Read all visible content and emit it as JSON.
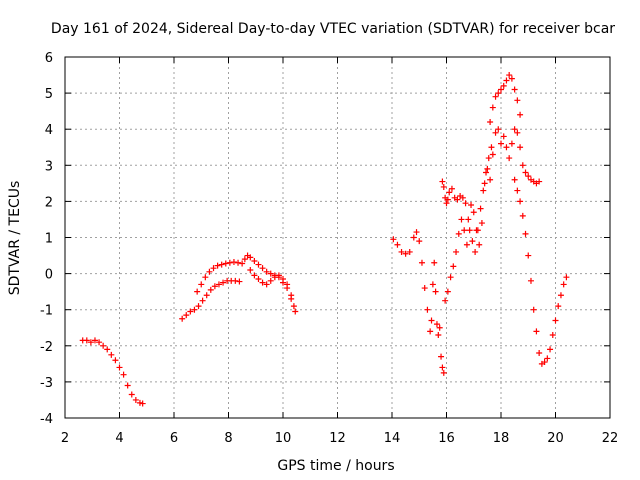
{
  "chart_data": {
    "type": "scatter",
    "title": "Day 161 of 2024, Sidereal Day-to-day VTEC variation (SDTVAR) for receiver bcar",
    "xlabel": "GPS time / hours",
    "ylabel": "SDTVAR / TECUs",
    "xlim": [
      2,
      22
    ],
    "ylim": [
      -4,
      6
    ],
    "xticks": [
      2,
      4,
      6,
      8,
      10,
      12,
      14,
      16,
      18,
      20,
      22
    ],
    "yticks": [
      -4,
      -3,
      -2,
      -1,
      0,
      1,
      2,
      3,
      4,
      5,
      6
    ],
    "grid": true,
    "marker": "+",
    "color": "#ff0000",
    "series": [
      {
        "name": "bcar",
        "points": [
          [
            2.65,
            -1.85
          ],
          [
            2.8,
            -1.85
          ],
          [
            2.95,
            -1.9
          ],
          [
            3.1,
            -1.85
          ],
          [
            3.25,
            -1.9
          ],
          [
            3.4,
            -2.0
          ],
          [
            3.55,
            -2.1
          ],
          [
            3.7,
            -2.25
          ],
          [
            3.85,
            -2.4
          ],
          [
            4.0,
            -2.6
          ],
          [
            4.15,
            -2.8
          ],
          [
            4.3,
            -3.1
          ],
          [
            4.45,
            -3.35
          ],
          [
            4.6,
            -3.5
          ],
          [
            4.75,
            -3.58
          ],
          [
            4.85,
            -3.6
          ],
          [
            6.3,
            -1.25
          ],
          [
            6.45,
            -1.15
          ],
          [
            6.6,
            -1.05
          ],
          [
            6.75,
            -1.0
          ],
          [
            6.9,
            -0.9
          ],
          [
            7.05,
            -0.75
          ],
          [
            7.2,
            -0.6
          ],
          [
            7.35,
            -0.45
          ],
          [
            7.5,
            -0.35
          ],
          [
            7.65,
            -0.3
          ],
          [
            7.8,
            -0.25
          ],
          [
            7.95,
            -0.2
          ],
          [
            8.1,
            -0.2
          ],
          [
            8.25,
            -0.2
          ],
          [
            8.4,
            -0.22
          ],
          [
            6.85,
            -0.5
          ],
          [
            7.0,
            -0.3
          ],
          [
            7.15,
            -0.1
          ],
          [
            7.3,
            0.05
          ],
          [
            7.45,
            0.15
          ],
          [
            7.6,
            0.22
          ],
          [
            7.75,
            0.25
          ],
          [
            7.9,
            0.28
          ],
          [
            8.05,
            0.3
          ],
          [
            8.2,
            0.32
          ],
          [
            8.35,
            0.3
          ],
          [
            8.5,
            0.28
          ],
          [
            8.6,
            0.4
          ],
          [
            8.7,
            0.5
          ],
          [
            8.8,
            0.45
          ],
          [
            8.95,
            0.35
          ],
          [
            9.1,
            0.25
          ],
          [
            9.25,
            0.15
          ],
          [
            9.4,
            0.05
          ],
          [
            9.55,
            0.0
          ],
          [
            9.7,
            -0.05
          ],
          [
            9.85,
            -0.1
          ],
          [
            10.0,
            -0.25
          ],
          [
            10.15,
            -0.4
          ],
          [
            10.3,
            -0.7
          ],
          [
            10.45,
            -1.05
          ],
          [
            8.8,
            0.1
          ],
          [
            8.95,
            -0.05
          ],
          [
            9.1,
            -0.15
          ],
          [
            9.25,
            -0.25
          ],
          [
            9.4,
            -0.3
          ],
          [
            9.55,
            -0.2
          ],
          [
            9.7,
            -0.1
          ],
          [
            9.85,
            -0.05
          ],
          [
            10.0,
            -0.15
          ],
          [
            10.15,
            -0.3
          ],
          [
            10.3,
            -0.6
          ],
          [
            10.4,
            -0.9
          ],
          [
            14.05,
            0.95
          ],
          [
            14.2,
            0.8
          ],
          [
            14.35,
            0.6
          ],
          [
            14.5,
            0.55
          ],
          [
            14.65,
            0.6
          ],
          [
            14.8,
            1.0
          ],
          [
            14.9,
            1.15
          ],
          [
            15.0,
            0.9
          ],
          [
            15.1,
            0.3
          ],
          [
            15.2,
            -0.4
          ],
          [
            15.3,
            -1.0
          ],
          [
            15.4,
            -1.6
          ],
          [
            15.45,
            -1.3
          ],
          [
            15.5,
            -0.3
          ],
          [
            15.55,
            0.3
          ],
          [
            15.6,
            -0.5
          ],
          [
            15.65,
            -1.4
          ],
          [
            15.7,
            -1.7
          ],
          [
            15.75,
            -1.5
          ],
          [
            15.8,
            -2.3
          ],
          [
            15.85,
            -2.6
          ],
          [
            15.9,
            -2.75
          ],
          [
            15.85,
            2.55
          ],
          [
            15.9,
            2.4
          ],
          [
            15.95,
            2.1
          ],
          [
            16.0,
            1.95
          ],
          [
            16.05,
            2.05
          ],
          [
            16.1,
            2.25
          ],
          [
            16.2,
            2.35
          ],
          [
            16.3,
            2.1
          ],
          [
            16.4,
            2.05
          ],
          [
            16.5,
            2.15
          ],
          [
            16.6,
            2.1
          ],
          [
            16.7,
            1.95
          ],
          [
            15.95,
            -0.75
          ],
          [
            16.05,
            -0.5
          ],
          [
            16.15,
            -0.1
          ],
          [
            16.25,
            0.2
          ],
          [
            16.35,
            0.6
          ],
          [
            16.45,
            1.1
          ],
          [
            16.55,
            1.5
          ],
          [
            16.65,
            1.2
          ],
          [
            16.75,
            0.8
          ],
          [
            16.85,
            1.2
          ],
          [
            16.95,
            0.9
          ],
          [
            17.05,
            0.6
          ],
          [
            17.15,
            1.2
          ],
          [
            17.25,
            1.8
          ],
          [
            17.35,
            2.3
          ],
          [
            17.45,
            2.8
          ],
          [
            17.55,
            3.2
          ],
          [
            17.65,
            3.5
          ],
          [
            16.8,
            1.5
          ],
          [
            16.9,
            1.9
          ],
          [
            17.0,
            1.7
          ],
          [
            17.1,
            1.2
          ],
          [
            17.2,
            0.8
          ],
          [
            17.3,
            1.4
          ],
          [
            17.4,
            2.5
          ],
          [
            17.5,
            2.9
          ],
          [
            17.6,
            2.6
          ],
          [
            17.7,
            3.3
          ],
          [
            17.8,
            3.9
          ],
          [
            17.9,
            4.0
          ],
          [
            17.6,
            4.2
          ],
          [
            17.7,
            4.6
          ],
          [
            17.8,
            4.9
          ],
          [
            17.9,
            5.0
          ],
          [
            18.0,
            5.1
          ],
          [
            18.1,
            5.2
          ],
          [
            18.2,
            5.35
          ],
          [
            18.3,
            5.5
          ],
          [
            18.4,
            5.4
          ],
          [
            18.5,
            5.1
          ],
          [
            18.6,
            4.8
          ],
          [
            18.7,
            4.4
          ],
          [
            18.0,
            3.6
          ],
          [
            18.1,
            3.8
          ],
          [
            18.2,
            3.5
          ],
          [
            18.3,
            3.2
          ],
          [
            18.4,
            3.6
          ],
          [
            18.5,
            4.0
          ],
          [
            18.6,
            3.9
          ],
          [
            18.7,
            3.5
          ],
          [
            18.8,
            3.0
          ],
          [
            18.9,
            2.8
          ],
          [
            19.0,
            2.7
          ],
          [
            19.1,
            2.6
          ],
          [
            19.2,
            2.55
          ],
          [
            19.3,
            2.5
          ],
          [
            19.4,
            2.55
          ],
          [
            18.5,
            2.6
          ],
          [
            18.6,
            2.3
          ],
          [
            18.7,
            2.0
          ],
          [
            18.8,
            1.6
          ],
          [
            18.9,
            1.1
          ],
          [
            19.0,
            0.5
          ],
          [
            19.1,
            -0.2
          ],
          [
            19.2,
            -1.0
          ],
          [
            19.3,
            -1.6
          ],
          [
            19.4,
            -2.2
          ],
          [
            19.5,
            -2.5
          ],
          [
            19.6,
            -2.45
          ],
          [
            19.7,
            -2.35
          ],
          [
            19.8,
            -2.1
          ],
          [
            19.9,
            -1.7
          ],
          [
            20.0,
            -1.3
          ],
          [
            20.1,
            -0.9
          ],
          [
            20.2,
            -0.6
          ],
          [
            20.3,
            -0.3
          ],
          [
            20.4,
            -0.1
          ]
        ]
      }
    ]
  }
}
